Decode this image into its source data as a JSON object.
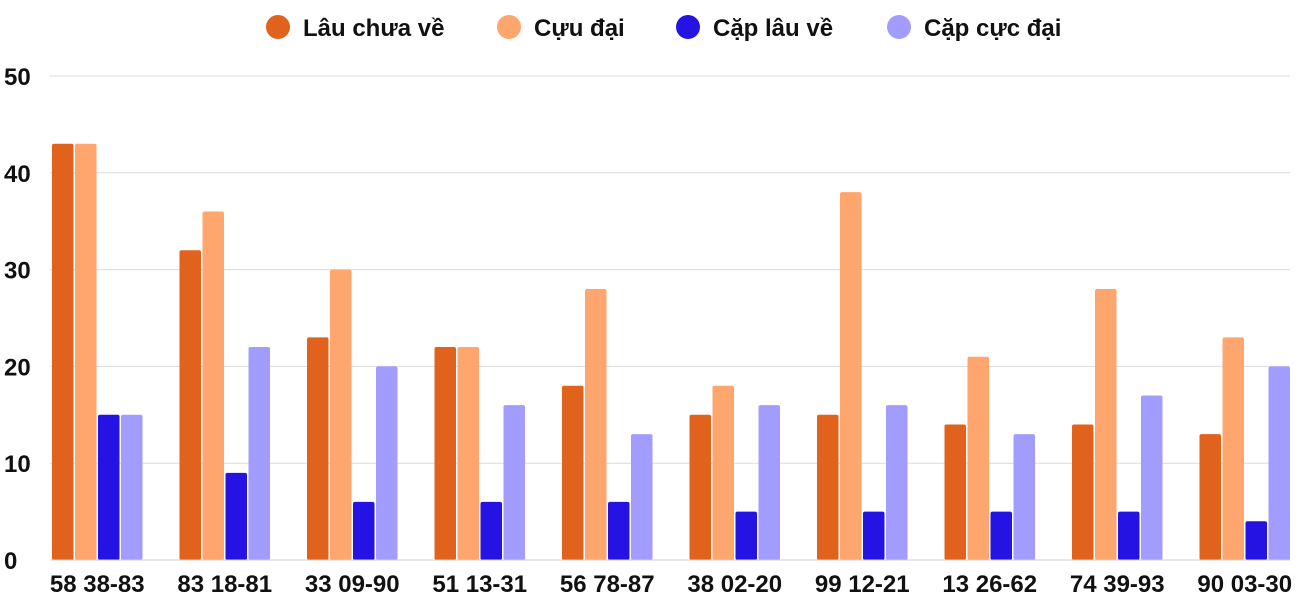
{
  "chart_data": {
    "type": "bar",
    "categories": [
      "58 38-83",
      "83 18-81",
      "33 09-90",
      "51 13-31",
      "56 78-87",
      "38 02-20",
      "99 12-21",
      "13 26-62",
      "74 39-93",
      "90 03-30"
    ],
    "series": [
      {
        "name": "Lâu chưa về",
        "color": "#e0621c",
        "values": [
          43,
          32,
          23,
          22,
          18,
          15,
          15,
          14,
          14,
          13
        ]
      },
      {
        "name": "Cựu đại",
        "color": "#ffa56e",
        "values": [
          43,
          36,
          30,
          22,
          28,
          18,
          38,
          21,
          28,
          23
        ]
      },
      {
        "name": "Cặp lâu về",
        "color": "#2413e3",
        "values": [
          15,
          9,
          6,
          6,
          6,
          5,
          5,
          5,
          5,
          4
        ]
      },
      {
        "name": "Cặp cực đại",
        "color": "#a39cff",
        "values": [
          15,
          22,
          20,
          16,
          13,
          16,
          16,
          13,
          17,
          20
        ]
      }
    ],
    "yticks": [
      0,
      10,
      20,
      30,
      40,
      50
    ],
    "ylim": [
      0,
      50
    ],
    "grid": true,
    "legend": "top-center",
    "title": "",
    "xlabel": "",
    "ylabel": ""
  }
}
